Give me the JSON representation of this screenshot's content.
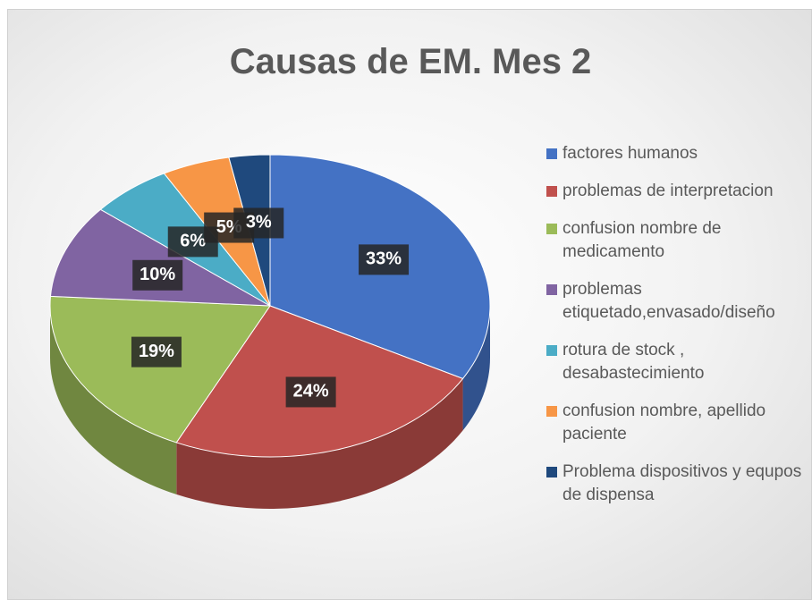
{
  "chart_data": {
    "type": "pie",
    "title": "Causas de EM. Mes 2",
    "categories": [
      "factores humanos",
      "problemas de interpretacion",
      "confusion nombre de medicamento",
      "problemas etiquetado,envasado/diseño",
      "rotura de stock , desabastecimiento",
      "confusion nombre, apellido paciente",
      "Problema dispositivos y equpos de dispensa"
    ],
    "values": [
      33,
      24,
      19,
      10,
      6,
      5,
      3
    ],
    "value_labels": [
      "33%",
      "24%",
      "19%",
      "10%",
      "6%",
      "5%",
      "3%"
    ],
    "colors": [
      "#4472c4",
      "#c0504d",
      "#9bbb59",
      "#8064a2",
      "#4bacc6",
      "#f79646",
      "#1f497d"
    ],
    "legend": "right"
  }
}
